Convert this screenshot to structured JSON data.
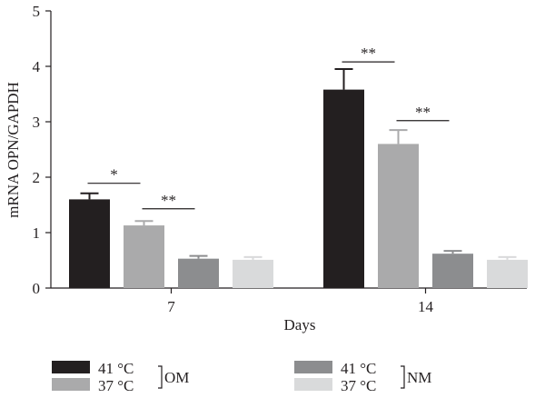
{
  "chart_data": {
    "type": "bar",
    "xlabel": "Days",
    "ylabel": "mRNA OPN/GAPDH",
    "ylim": [
      0,
      5
    ],
    "yticks": [
      "0",
      "1",
      "2",
      "3",
      "4",
      "5"
    ],
    "grid": false,
    "legend_position": "bottom",
    "categories": [
      "7",
      "14"
    ],
    "series": [
      {
        "name": "41 °C",
        "color": "#231f20",
        "values": [
          1.6,
          3.58
        ],
        "errors": [
          0.11,
          0.37
        ]
      },
      {
        "name": "37 °C",
        "color": "#aaaaab",
        "values": [
          1.13,
          2.6
        ],
        "errors": [
          0.08,
          0.25
        ]
      },
      {
        "name": "41 °C",
        "color": "#8c8d8f",
        "values": [
          0.53,
          0.62
        ],
        "errors": [
          0.05,
          0.05
        ]
      },
      {
        "name": "37 °C",
        "color": "#d9dadb",
        "values": [
          0.51,
          0.51
        ],
        "errors": [
          0.05,
          0.05
        ]
      }
    ],
    "legend_groups": [
      {
        "label": "OM",
        "series": [
          0,
          1
        ]
      },
      {
        "label": "NM",
        "series": [
          2,
          3
        ]
      }
    ],
    "annotations": [
      {
        "category": 0,
        "from_series": 0,
        "to_series": 1,
        "label": "*",
        "y": 1.89
      },
      {
        "category": 0,
        "from_series": 1,
        "to_series": 2,
        "label": "**",
        "y": 1.43
      },
      {
        "category": 1,
        "from_series": 0,
        "to_series": 1,
        "label": "**",
        "y": 4.08
      },
      {
        "category": 1,
        "from_series": 1,
        "to_series": 2,
        "label": "**",
        "y": 3.02
      }
    ]
  }
}
